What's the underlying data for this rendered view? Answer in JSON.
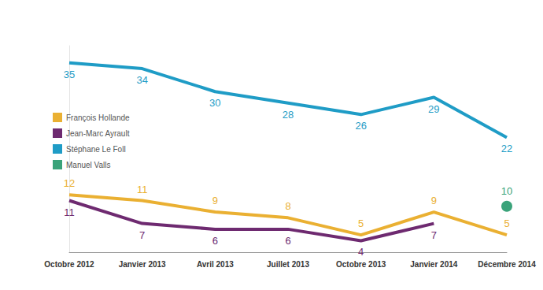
{
  "chart_data": {
    "type": "line",
    "categories": [
      "Octobre 2012",
      "Janvier 2013",
      "Avril 2013",
      "Juillet 2013",
      "Octobre 2013",
      "Janvier 2014",
      "Décembre 2014"
    ],
    "series": [
      {
        "name": "François Hollande",
        "color": "#eab032",
        "values": [
          12,
          11,
          9,
          8,
          5,
          9,
          5
        ]
      },
      {
        "name": "Jean-Marc Ayrault",
        "color": "#6e2a70",
        "values": [
          11,
          7,
          6,
          6,
          4,
          7,
          null
        ]
      },
      {
        "name": "Stéphane Le Foll",
        "color": "#1f9cc6",
        "values": [
          35,
          34,
          30,
          28,
          26,
          29,
          22
        ]
      },
      {
        "name": "Manuel Valls",
        "color": "#3aa37a",
        "marker": "circle",
        "values": [
          null,
          null,
          null,
          null,
          null,
          null,
          10
        ]
      }
    ],
    "ylim": [
      2,
      38
    ],
    "tick_labels": "x",
    "data_labels": true,
    "legend": "left",
    "grid": false
  }
}
